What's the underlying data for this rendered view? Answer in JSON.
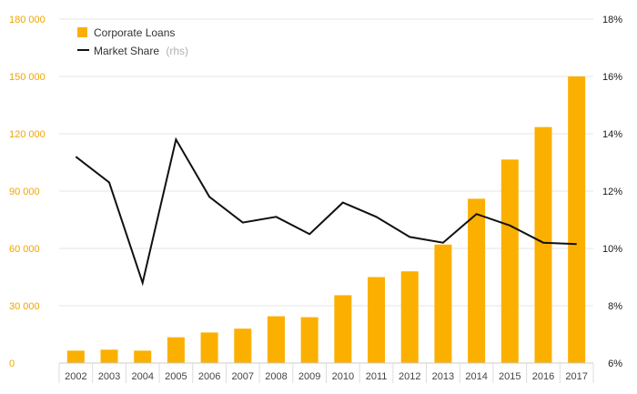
{
  "chart_data": {
    "type": "bar",
    "categories": [
      "2002",
      "2003",
      "2004",
      "2005",
      "2006",
      "2007",
      "2008",
      "2009",
      "2010",
      "2011",
      "2012",
      "2013",
      "2014",
      "2015",
      "2016",
      "2017"
    ],
    "series": [
      {
        "name": "Corporate Loans",
        "kind": "bar",
        "axis": "left",
        "color": "#fbb000",
        "values": [
          6500,
          7000,
          6500,
          13500,
          16000,
          18000,
          24500,
          24000,
          35500,
          45000,
          48000,
          62000,
          86000,
          106500,
          123500,
          150000
        ]
      },
      {
        "name": "Market Share",
        "name_note": "(rhs)",
        "kind": "line",
        "axis": "right",
        "color": "#111111",
        "values": [
          13.2,
          12.3,
          8.8,
          13.8,
          11.8,
          10.9,
          11.1,
          10.5,
          11.6,
          11.1,
          10.4,
          10.2,
          11.2,
          10.8,
          10.2,
          10.15
        ]
      }
    ],
    "ylim_left": [
      0,
      180000
    ],
    "yticks_left": [
      0,
      30000,
      60000,
      90000,
      120000,
      150000,
      180000
    ],
    "yticklabels_left": [
      "0",
      "30 000",
      "60 000",
      "90 000",
      "120 000",
      "150 000",
      "180 000"
    ],
    "ylim_right": [
      6,
      18
    ],
    "yticks_right": [
      6,
      8,
      10,
      12,
      14,
      16,
      18
    ],
    "yticklabels_right": [
      "6%",
      "8%",
      "10%",
      "12%",
      "14%",
      "16%",
      "18%"
    ],
    "grid": true,
    "legend_position": "top-left",
    "colors": {
      "left_axis_labels": "#f0a500",
      "gridline": "#e6e6e6"
    }
  }
}
